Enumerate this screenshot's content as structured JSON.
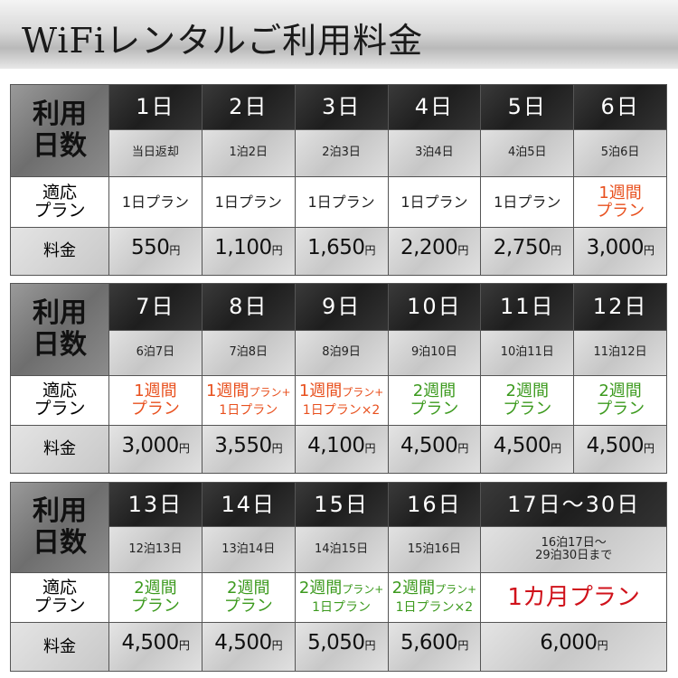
{
  "title": "WiFiレンタルご利用料金",
  "labels": {
    "days_1": "利用",
    "days_2": "日数",
    "plan_1": "適応",
    "plan_2": "プラン",
    "price": "料金"
  },
  "colors": {
    "orange": "#e8501e",
    "green": "#3c9a1e",
    "red": "#d0121b",
    "default": "#222222"
  },
  "tables": [
    {
      "cols": [
        {
          "day": "1日",
          "nights": [
            "当日返却"
          ],
          "plan": {
            "color": "default",
            "lines": [
              [
                {
                  "t": "1日プラン"
                }
              ]
            ]
          },
          "price": "550",
          "yen": "円"
        },
        {
          "day": "2日",
          "nights": [
            "1泊2日"
          ],
          "plan": {
            "color": "default",
            "lines": [
              [
                {
                  "t": "1日プラン"
                }
              ]
            ]
          },
          "price": "1,100",
          "yen": "円"
        },
        {
          "day": "3日",
          "nights": [
            "2泊3日"
          ],
          "plan": {
            "color": "default",
            "lines": [
              [
                {
                  "t": "1日プラン"
                }
              ]
            ]
          },
          "price": "1,650",
          "yen": "円"
        },
        {
          "day": "4日",
          "nights": [
            "3泊4日"
          ],
          "plan": {
            "color": "default",
            "lines": [
              [
                {
                  "t": "1日プラン"
                }
              ]
            ]
          },
          "price": "2,200",
          "yen": "円"
        },
        {
          "day": "5日",
          "nights": [
            "4泊5日"
          ],
          "plan": {
            "color": "default",
            "lines": [
              [
                {
                  "t": "1日プラン"
                }
              ]
            ]
          },
          "price": "2,750",
          "yen": "円"
        },
        {
          "day": "6日",
          "nights": [
            "5泊6日"
          ],
          "plan": {
            "color": "orange",
            "lines": [
              [
                {
                  "t": "1週間"
                }
              ],
              [
                {
                  "t": "プラン"
                }
              ]
            ]
          },
          "price": "3,000",
          "yen": "円"
        }
      ]
    },
    {
      "cols": [
        {
          "day": "7日",
          "nights": [
            "6泊7日"
          ],
          "plan": {
            "color": "orange",
            "lines": [
              [
                {
                  "t": "1週間"
                }
              ],
              [
                {
                  "t": "プラン"
                }
              ]
            ]
          },
          "price": "3,000",
          "yen": "円"
        },
        {
          "day": "8日",
          "nights": [
            "7泊8日"
          ],
          "plan": {
            "color": "orange",
            "lines": [
              [
                {
                  "t": "1週間"
                },
                {
                  "t": "プラン+",
                  "s": 1
                }
              ],
              [
                {
                  "t": "1日プラン",
                  "s": 2
                }
              ]
            ]
          },
          "price": "3,550",
          "yen": "円"
        },
        {
          "day": "9日",
          "nights": [
            "8泊9日"
          ],
          "plan": {
            "color": "orange",
            "lines": [
              [
                {
                  "t": "1週間"
                },
                {
                  "t": "プラン+",
                  "s": 1
                }
              ],
              [
                {
                  "t": "1日プラン×2",
                  "s": 2
                }
              ]
            ]
          },
          "price": "4,100",
          "yen": "円"
        },
        {
          "day": "10日",
          "nights": [
            "9泊10日"
          ],
          "plan": {
            "color": "green",
            "lines": [
              [
                {
                  "t": "2週間"
                }
              ],
              [
                {
                  "t": "プラン"
                }
              ]
            ]
          },
          "price": "4,500",
          "yen": "円"
        },
        {
          "day": "11日",
          "nights": [
            "10泊11日"
          ],
          "plan": {
            "color": "green",
            "lines": [
              [
                {
                  "t": "2週間"
                }
              ],
              [
                {
                  "t": "プラン"
                }
              ]
            ]
          },
          "price": "4,500",
          "yen": "円"
        },
        {
          "day": "12日",
          "nights": [
            "11泊12日"
          ],
          "plan": {
            "color": "green",
            "lines": [
              [
                {
                  "t": "2週間"
                }
              ],
              [
                {
                  "t": "プラン"
                }
              ]
            ]
          },
          "price": "4,500",
          "yen": "円"
        }
      ]
    },
    {
      "cols": [
        {
          "day": "13日",
          "nights": [
            "12泊13日"
          ],
          "plan": {
            "color": "green",
            "lines": [
              [
                {
                  "t": "2週間"
                }
              ],
              [
                {
                  "t": "プラン"
                }
              ]
            ]
          },
          "price": "4,500",
          "yen": "円"
        },
        {
          "day": "14日",
          "nights": [
            "13泊14日"
          ],
          "plan": {
            "color": "green",
            "lines": [
              [
                {
                  "t": "2週間"
                }
              ],
              [
                {
                  "t": "プラン"
                }
              ]
            ]
          },
          "price": "4,500",
          "yen": "円"
        },
        {
          "day": "15日",
          "nights": [
            "14泊15日"
          ],
          "plan": {
            "color": "green",
            "lines": [
              [
                {
                  "t": "2週間"
                },
                {
                  "t": "プラン+",
                  "s": 1
                }
              ],
              [
                {
                  "t": "1日プラン",
                  "s": 2
                }
              ]
            ]
          },
          "price": "5,050",
          "yen": "円"
        },
        {
          "day": "16日",
          "nights": [
            "15泊16日"
          ],
          "plan": {
            "color": "green",
            "lines": [
              [
                {
                  "t": "2週間"
                },
                {
                  "t": "プラン+",
                  "s": 1
                }
              ],
              [
                {
                  "t": "1日プラン×2",
                  "s": 2
                }
              ]
            ]
          },
          "price": "5,600",
          "yen": "円"
        },
        {
          "day": "17日～30日",
          "span": 2,
          "nights": [
            "16泊17日～",
            "29泊30日まで"
          ],
          "plan": {
            "color": "red",
            "big": true,
            "lines": [
              [
                {
                  "t": "1カ月プラン"
                }
              ]
            ]
          },
          "price": "6,000",
          "yen": "円"
        }
      ]
    }
  ]
}
